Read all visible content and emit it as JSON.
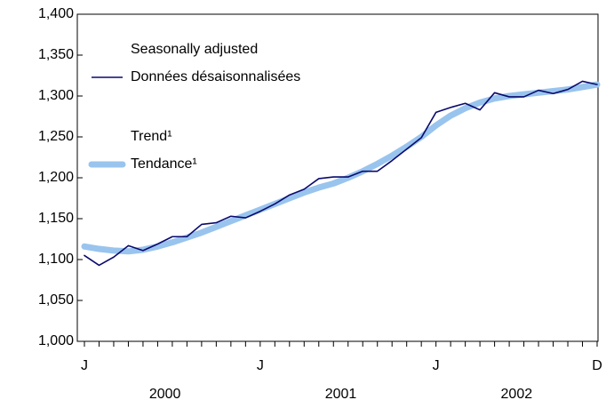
{
  "chart_data": {
    "type": "line",
    "categories": [
      "J",
      null,
      null,
      null,
      null,
      null,
      null,
      null,
      null,
      null,
      null,
      null,
      "J",
      null,
      null,
      null,
      null,
      null,
      null,
      null,
      null,
      null,
      null,
      null,
      "J",
      null,
      null,
      null,
      null,
      null,
      null,
      null,
      null,
      null,
      null,
      "D"
    ],
    "groups": [
      "2000",
      "2001",
      "2002"
    ],
    "series": [
      {
        "name": "Trend¹",
        "name_fr": "Tendance¹",
        "color": "#99c4ee",
        "values": [
          1116,
          1113,
          1111,
          1110,
          1112,
          1116,
          1121,
          1127,
          1133,
          1140,
          1147,
          1154,
          1161,
          1168,
          1175,
          1182,
          1188,
          1193,
          1200,
          1208,
          1217,
          1227,
          1238,
          1250,
          1264,
          1276,
          1285,
          1292,
          1297,
          1300,
          1302,
          1304,
          1306,
          1308,
          1311,
          1314
        ]
      },
      {
        "name": "Seasonally adjusted",
        "name_fr": "Données désaisonnalisées",
        "color": "#0a0a6e",
        "values": [
          1105,
          1093,
          1103,
          1117,
          1111,
          1119,
          1128,
          1128,
          1143,
          1145,
          1153,
          1151,
          1159,
          1168,
          1179,
          1186,
          1199,
          1201,
          1201,
          1208,
          1208,
          1221,
          1235,
          1249,
          1280,
          1286,
          1291,
          1283,
          1304,
          1299,
          1299,
          1307,
          1303,
          1308,
          1318,
          1314
        ]
      }
    ],
    "ylim": [
      1000,
      1400
    ],
    "yticks": [
      {
        "value": 1000,
        "label": "1,000"
      },
      {
        "value": 1050,
        "label": "1,050"
      },
      {
        "value": 1100,
        "label": "1,100"
      },
      {
        "value": 1150,
        "label": "1,150"
      },
      {
        "value": 1200,
        "label": "1,200"
      },
      {
        "value": 1250,
        "label": "1,250"
      },
      {
        "value": 1300,
        "label": "1,300"
      },
      {
        "value": 1350,
        "label": "1,350"
      },
      {
        "value": 1400,
        "label": "1,400"
      }
    ]
  }
}
